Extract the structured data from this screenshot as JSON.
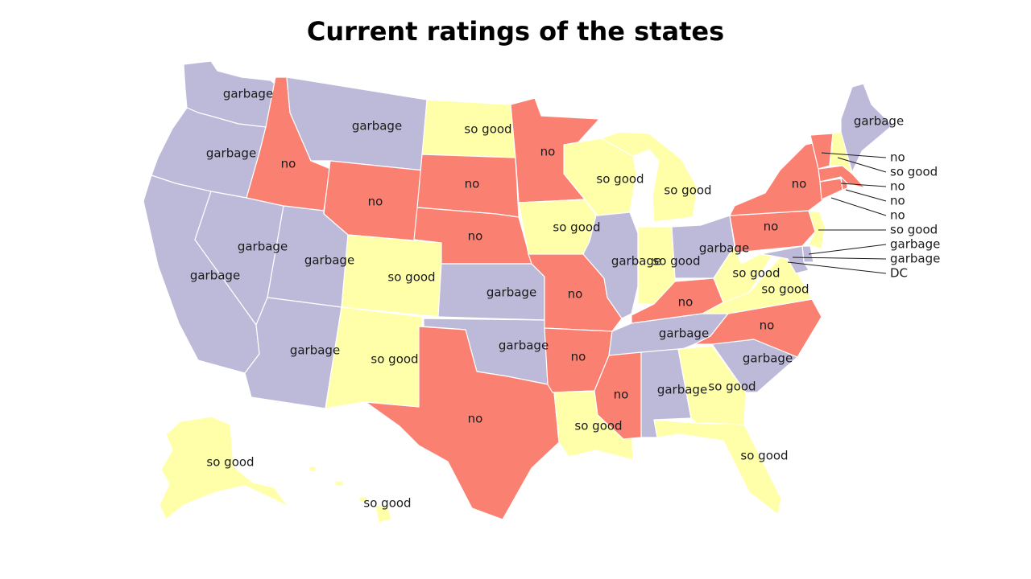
{
  "title": "Current ratings of the states",
  "legend_colors": {
    "garbage": "#bdb9d9",
    "no": "#fa8072",
    "so good": "#ffffaa"
  },
  "states": {
    "WA": "garbage",
    "OR": "garbage",
    "CA": "garbage",
    "NV": "garbage",
    "ID": "no",
    "MT": "garbage",
    "WY": "no",
    "UT": "garbage",
    "AZ": "garbage",
    "CO": "so good",
    "NM": "so good",
    "ND": "so good",
    "SD": "no",
    "NE": "no",
    "KS": "garbage",
    "OK": "garbage",
    "TX": "no",
    "MN": "no",
    "IA": "so good",
    "MO": "no",
    "AR": "no",
    "LA": "so good",
    "WI": "so good",
    "IL": "garbage",
    "MI": "so good",
    "IN": "so good",
    "OH": "garbage",
    "KY": "no",
    "TN": "garbage",
    "MS": "no",
    "AL": "garbage",
    "GA": "so good",
    "FL": "so good",
    "SC": "garbage",
    "NC": "no",
    "VA": "so good",
    "WV": "so good",
    "PA": "no",
    "NY": "no",
    "ME": "garbage",
    "VT": "no",
    "NH": "so good",
    "MA": "no",
    "RI": "no",
    "CT": "no",
    "NJ": "so good",
    "DE": "garbage",
    "MD": "garbage",
    "DC": "DC",
    "AK": "so good",
    "HI": "so good"
  }
}
